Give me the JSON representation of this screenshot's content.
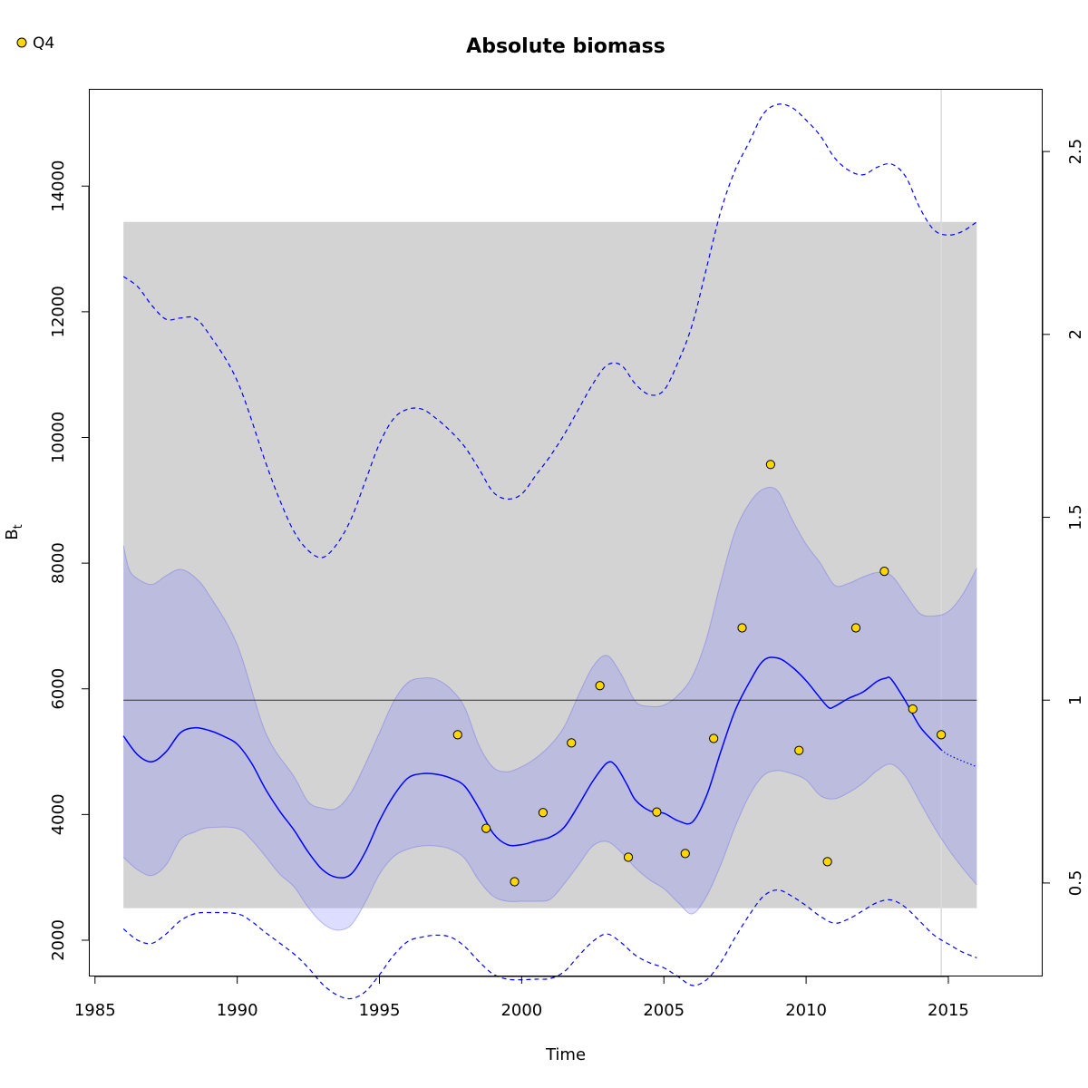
{
  "chart_data": {
    "type": "line",
    "title": "Absolute biomass",
    "xlabel": "Time",
    "ylabel": "B",
    "ylabel_subscript": "t",
    "xlim": [
      1984.8,
      2018.3
    ],
    "ylim": [
      1430,
      15540
    ],
    "right_axis_ratio_at_1": 5820,
    "x_ticks": [
      1985,
      1990,
      1995,
      2000,
      2005,
      2010,
      2015
    ],
    "y_ticks": [
      2000,
      4000,
      6000,
      8000,
      10000,
      12000,
      14000
    ],
    "right_ticks": [
      {
        "value": 0.5,
        "label": "0.5"
      },
      {
        "value": 1.0,
        "label": "1"
      },
      {
        "value": 1.5,
        "label": "1.5"
      },
      {
        "value": 2.0,
        "label": "2"
      },
      {
        "value": 2.5,
        "label": "2.5"
      }
    ],
    "bmsy_band": {
      "x": [
        1986,
        2016
      ],
      "y": [
        2510,
        13430
      ]
    },
    "reference_line": {
      "y": 5820,
      "x": [
        1986,
        2016
      ]
    },
    "vertical_line": {
      "x": 2014.75
    },
    "legend": [
      {
        "name": "Q4",
        "color": "#FFD700",
        "position": "top-left"
      }
    ],
    "series": [
      {
        "name": "Q4",
        "kind": "points",
        "points": [
          [
            1997.75,
            5270
          ],
          [
            1998.75,
            3780
          ],
          [
            1999.75,
            2930
          ],
          [
            2000.75,
            4030
          ],
          [
            2001.75,
            5140
          ],
          [
            2002.75,
            6050
          ],
          [
            2003.75,
            3320
          ],
          [
            2004.75,
            4040
          ],
          [
            2005.75,
            3380
          ],
          [
            2006.75,
            5210
          ],
          [
            2007.75,
            6970
          ],
          [
            2008.75,
            9570
          ],
          [
            2009.75,
            5020
          ],
          [
            2010.75,
            3250
          ],
          [
            2011.75,
            6970
          ],
          [
            2012.75,
            7870
          ],
          [
            2013.75,
            5680
          ],
          [
            2014.75,
            5270
          ]
        ]
      }
    ],
    "estimate_line": [
      [
        1986,
        5250
      ],
      [
        1986.5,
        4950
      ],
      [
        1987,
        4840
      ],
      [
        1987.5,
        5000
      ],
      [
        1988,
        5300
      ],
      [
        1988.5,
        5380
      ],
      [
        1989,
        5340
      ],
      [
        1989.5,
        5250
      ],
      [
        1990,
        5120
      ],
      [
        1990.5,
        4820
      ],
      [
        1991,
        4400
      ],
      [
        1991.5,
        4050
      ],
      [
        1992,
        3750
      ],
      [
        1992.5,
        3400
      ],
      [
        1993,
        3120
      ],
      [
        1993.5,
        3000
      ],
      [
        1994,
        3050
      ],
      [
        1994.5,
        3400
      ],
      [
        1995,
        3900
      ],
      [
        1995.5,
        4300
      ],
      [
        1996,
        4580
      ],
      [
        1996.5,
        4650
      ],
      [
        1997,
        4640
      ],
      [
        1997.5,
        4580
      ],
      [
        1998,
        4450
      ],
      [
        1998.5,
        4100
      ],
      [
        1999,
        3700
      ],
      [
        1999.5,
        3520
      ],
      [
        2000,
        3520
      ],
      [
        2000.5,
        3580
      ],
      [
        2001,
        3640
      ],
      [
        2001.5,
        3800
      ],
      [
        2002,
        4150
      ],
      [
        2002.5,
        4530
      ],
      [
        2003,
        4820
      ],
      [
        2003.3,
        4780
      ],
      [
        2003.7,
        4480
      ],
      [
        2004,
        4230
      ],
      [
        2004.5,
        4060
      ],
      [
        2005,
        4020
      ],
      [
        2005.5,
        3900
      ],
      [
        2006,
        3880
      ],
      [
        2006.5,
        4300
      ],
      [
        2007,
        5000
      ],
      [
        2007.5,
        5650
      ],
      [
        2008,
        6100
      ],
      [
        2008.5,
        6450
      ],
      [
        2009,
        6490
      ],
      [
        2009.5,
        6350
      ],
      [
        2010,
        6130
      ],
      [
        2010.5,
        5850
      ],
      [
        2010.8,
        5700
      ],
      [
        2011,
        5720
      ],
      [
        2011.5,
        5850
      ],
      [
        2012,
        5950
      ],
      [
        2012.5,
        6120
      ],
      [
        2012.8,
        6170
      ],
      [
        2013,
        6150
      ],
      [
        2013.5,
        5800
      ],
      [
        2014,
        5400
      ],
      [
        2014.5,
        5150
      ],
      [
        2014.75,
        5030
      ]
    ],
    "forecast_line": [
      [
        2014.75,
        5030
      ],
      [
        2015,
        4950
      ],
      [
        2015.5,
        4850
      ],
      [
        2016,
        4760
      ]
    ],
    "ci_upper": [
      [
        1986,
        8280
      ],
      [
        1986.2,
        7900
      ],
      [
        1986.5,
        7750
      ],
      [
        1987,
        7660
      ],
      [
        1987.5,
        7800
      ],
      [
        1988,
        7900
      ],
      [
        1988.5,
        7780
      ],
      [
        1989,
        7500
      ],
      [
        1990,
        6700
      ],
      [
        1991,
        5300
      ],
      [
        1992,
        4600
      ],
      [
        1992.5,
        4200
      ],
      [
        1993,
        4100
      ],
      [
        1993.5,
        4100
      ],
      [
        1994,
        4350
      ],
      [
        1994.5,
        4800
      ],
      [
        1995,
        5300
      ],
      [
        1995.5,
        5800
      ],
      [
        1996,
        6100
      ],
      [
        1996.5,
        6170
      ],
      [
        1997,
        6150
      ],
      [
        1997.5,
        6000
      ],
      [
        1998,
        5700
      ],
      [
        1998.5,
        5100
      ],
      [
        1999,
        4750
      ],
      [
        1999.5,
        4680
      ],
      [
        2000,
        4760
      ],
      [
        2000.5,
        4900
      ],
      [
        2001,
        5100
      ],
      [
        2001.5,
        5400
      ],
      [
        2002,
        5900
      ],
      [
        2002.5,
        6350
      ],
      [
        2003,
        6530
      ],
      [
        2003.5,
        6230
      ],
      [
        2004,
        5800
      ],
      [
        2004.5,
        5720
      ],
      [
        2005,
        5740
      ],
      [
        2005.5,
        5900
      ],
      [
        2006,
        6200
      ],
      [
        2006.5,
        6800
      ],
      [
        2007,
        7700
      ],
      [
        2007.5,
        8500
      ],
      [
        2008,
        8950
      ],
      [
        2008.5,
        9180
      ],
      [
        2009,
        9150
      ],
      [
        2009.5,
        8700
      ],
      [
        2010,
        8300
      ],
      [
        2010.5,
        8000
      ],
      [
        2011,
        7650
      ],
      [
        2011.5,
        7680
      ],
      [
        2012,
        7780
      ],
      [
        2012.5,
        7850
      ],
      [
        2013,
        7800
      ],
      [
        2013.5,
        7500
      ],
      [
        2014,
        7200
      ],
      [
        2014.5,
        7160
      ],
      [
        2015,
        7230
      ],
      [
        2015.5,
        7500
      ],
      [
        2016,
        7920
      ]
    ],
    "ci_lower": [
      [
        1986,
        3320
      ],
      [
        1986.5,
        3120
      ],
      [
        1987,
        3030
      ],
      [
        1987.5,
        3200
      ],
      [
        1988,
        3600
      ],
      [
        1988.5,
        3720
      ],
      [
        1989,
        3790
      ],
      [
        1990,
        3780
      ],
      [
        1990.5,
        3600
      ],
      [
        1991,
        3330
      ],
      [
        1991.5,
        3050
      ],
      [
        1992,
        2850
      ],
      [
        1992.5,
        2520
      ],
      [
        1993,
        2270
      ],
      [
        1993.5,
        2160
      ],
      [
        1994,
        2240
      ],
      [
        1994.5,
        2600
      ],
      [
        1995,
        3050
      ],
      [
        1995.5,
        3330
      ],
      [
        1996,
        3450
      ],
      [
        1996.5,
        3500
      ],
      [
        1997,
        3500
      ],
      [
        1997.5,
        3450
      ],
      [
        1998,
        3300
      ],
      [
        1998.5,
        2950
      ],
      [
        1999,
        2700
      ],
      [
        1999.5,
        2620
      ],
      [
        2000,
        2620
      ],
      [
        2000.5,
        2620
      ],
      [
        2001,
        2650
      ],
      [
        2001.5,
        2900
      ],
      [
        2002,
        3200
      ],
      [
        2002.5,
        3500
      ],
      [
        2003,
        3570
      ],
      [
        2003.5,
        3400
      ],
      [
        2004,
        3150
      ],
      [
        2004.5,
        2960
      ],
      [
        2005,
        2820
      ],
      [
        2005.5,
        2600
      ],
      [
        2006,
        2420
      ],
      [
        2006.5,
        2700
      ],
      [
        2007,
        3200
      ],
      [
        2007.5,
        3800
      ],
      [
        2008,
        4300
      ],
      [
        2008.5,
        4620
      ],
      [
        2009,
        4700
      ],
      [
        2009.5,
        4650
      ],
      [
        2010,
        4550
      ],
      [
        2010.5,
        4300
      ],
      [
        2011,
        4250
      ],
      [
        2011.5,
        4350
      ],
      [
        2012,
        4500
      ],
      [
        2012.5,
        4700
      ],
      [
        2013,
        4800
      ],
      [
        2013.5,
        4600
      ],
      [
        2014,
        4200
      ],
      [
        2014.5,
        3800
      ],
      [
        2015,
        3450
      ],
      [
        2015.5,
        3150
      ],
      [
        2016,
        2880
      ]
    ],
    "outer_upper": [
      [
        1986,
        12560
      ],
      [
        1986.5,
        12400
      ],
      [
        1987,
        12100
      ],
      [
        1987.5,
        11880
      ],
      [
        1988,
        11900
      ],
      [
        1988.5,
        11900
      ],
      [
        1989,
        11650
      ],
      [
        1990,
        10900
      ],
      [
        1991,
        9600
      ],
      [
        1991.5,
        9000
      ],
      [
        1992,
        8500
      ],
      [
        1992.5,
        8200
      ],
      [
        1993,
        8090
      ],
      [
        1993.5,
        8300
      ],
      [
        1994,
        8700
      ],
      [
        1994.5,
        9300
      ],
      [
        1995,
        9900
      ],
      [
        1995.5,
        10300
      ],
      [
        1996,
        10450
      ],
      [
        1996.5,
        10450
      ],
      [
        1997,
        10300
      ],
      [
        1997.5,
        10100
      ],
      [
        1998,
        9850
      ],
      [
        1998.5,
        9500
      ],
      [
        1999,
        9130
      ],
      [
        1999.5,
        9020
      ],
      [
        2000,
        9100
      ],
      [
        2000.5,
        9400
      ],
      [
        2001,
        9700
      ],
      [
        2001.5,
        10050
      ],
      [
        2002,
        10450
      ],
      [
        2002.5,
        10850
      ],
      [
        2003,
        11150
      ],
      [
        2003.5,
        11150
      ],
      [
        2004,
        10850
      ],
      [
        2004.5,
        10680
      ],
      [
        2005,
        10750
      ],
      [
        2005.5,
        11200
      ],
      [
        2006,
        11800
      ],
      [
        2006.5,
        12700
      ],
      [
        2007,
        13600
      ],
      [
        2007.5,
        14250
      ],
      [
        2008,
        14700
      ],
      [
        2008.5,
        15150
      ],
      [
        2009,
        15300
      ],
      [
        2009.5,
        15250
      ],
      [
        2010,
        15050
      ],
      [
        2010.5,
        14800
      ],
      [
        2011,
        14450
      ],
      [
        2011.5,
        14250
      ],
      [
        2012,
        14180
      ],
      [
        2012.5,
        14300
      ],
      [
        2013,
        14350
      ],
      [
        2013.5,
        14150
      ],
      [
        2014,
        13650
      ],
      [
        2014.5,
        13300
      ],
      [
        2015,
        13220
      ],
      [
        2015.5,
        13280
      ],
      [
        2016,
        13430
      ]
    ],
    "outer_lower": [
      [
        1986,
        2180
      ],
      [
        1986.5,
        2000
      ],
      [
        1987,
        1950
      ],
      [
        1987.5,
        2100
      ],
      [
        1988,
        2310
      ],
      [
        1988.5,
        2420
      ],
      [
        1989,
        2440
      ],
      [
        1990,
        2420
      ],
      [
        1990.5,
        2300
      ],
      [
        1991,
        2120
      ],
      [
        1992,
        1780
      ],
      [
        1992.5,
        1560
      ],
      [
        1993,
        1300
      ],
      [
        1993.5,
        1130
      ],
      [
        1994,
        1070
      ],
      [
        1994.5,
        1180
      ],
      [
        1995,
        1450
      ],
      [
        1995.5,
        1760
      ],
      [
        1996,
        1980
      ],
      [
        1996.5,
        2050
      ],
      [
        1997,
        2080
      ],
      [
        1997.5,
        2050
      ],
      [
        1998,
        1900
      ],
      [
        1998.5,
        1660
      ],
      [
        1999,
        1460
      ],
      [
        1999.5,
        1380
      ],
      [
        2000,
        1370
      ],
      [
        2000.5,
        1380
      ],
      [
        2001,
        1390
      ],
      [
        2001.5,
        1500
      ],
      [
        2002,
        1750
      ],
      [
        2002.5,
        1980
      ],
      [
        2003,
        2100
      ],
      [
        2003.5,
        1960
      ],
      [
        2004,
        1760
      ],
      [
        2004.5,
        1640
      ],
      [
        2005,
        1560
      ],
      [
        2005.5,
        1420
      ],
      [
        2006,
        1280
      ],
      [
        2006.5,
        1370
      ],
      [
        2007,
        1650
      ],
      [
        2007.5,
        2040
      ],
      [
        2008,
        2400
      ],
      [
        2008.5,
        2700
      ],
      [
        2009,
        2800
      ],
      [
        2009.5,
        2700
      ],
      [
        2010,
        2550
      ],
      [
        2010.5,
        2380
      ],
      [
        2011,
        2270
      ],
      [
        2011.5,
        2340
      ],
      [
        2012,
        2470
      ],
      [
        2012.5,
        2600
      ],
      [
        2013,
        2640
      ],
      [
        2013.5,
        2520
      ],
      [
        2014,
        2300
      ],
      [
        2014.5,
        2080
      ],
      [
        2015,
        1940
      ],
      [
        2015.5,
        1810
      ],
      [
        2016,
        1720
      ]
    ]
  }
}
